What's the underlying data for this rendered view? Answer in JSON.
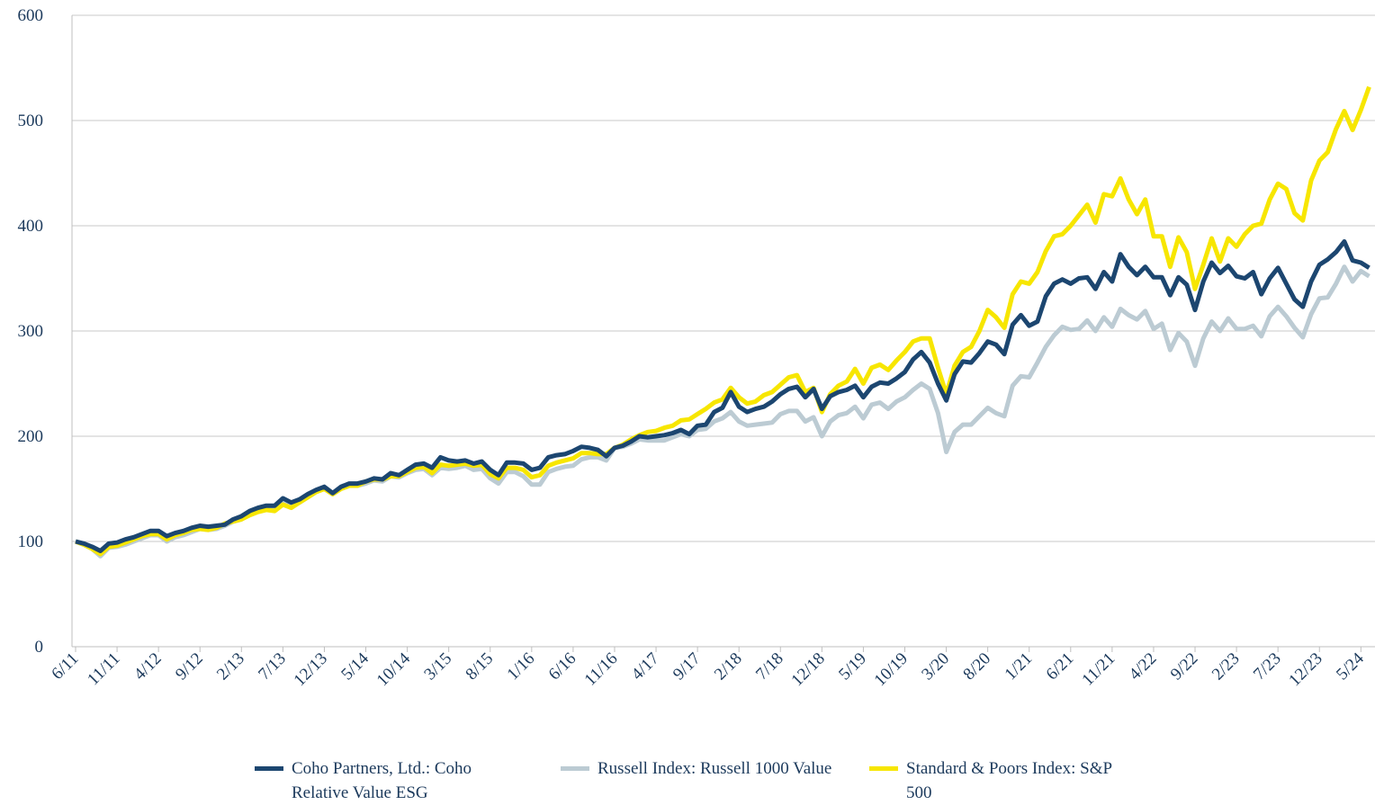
{
  "chart_data": {
    "type": "line",
    "categories": [
      "6/11",
      null,
      null,
      null,
      null,
      "11/11",
      null,
      null,
      null,
      null,
      "4/12",
      null,
      null,
      null,
      null,
      "9/12",
      null,
      null,
      null,
      null,
      "2/13",
      null,
      null,
      null,
      null,
      "7/13",
      null,
      null,
      null,
      null,
      "12/13",
      null,
      null,
      null,
      null,
      "5/14",
      null,
      null,
      null,
      null,
      "10/14",
      null,
      null,
      null,
      null,
      "3/15",
      null,
      null,
      null,
      null,
      "8/15",
      null,
      null,
      null,
      null,
      "1/16",
      null,
      null,
      null,
      null,
      "6/16",
      null,
      null,
      null,
      null,
      "11/16",
      null,
      null,
      null,
      null,
      "4/17",
      null,
      null,
      null,
      null,
      "9/17",
      null,
      null,
      null,
      null,
      "2/18",
      null,
      null,
      null,
      null,
      "7/18",
      null,
      null,
      null,
      null,
      "12/18",
      null,
      null,
      null,
      null,
      "5/19",
      null,
      null,
      null,
      null,
      "10/19",
      null,
      null,
      null,
      null,
      "3/20",
      null,
      null,
      null,
      null,
      "8/20",
      null,
      null,
      null,
      null,
      "1/21",
      null,
      null,
      null,
      null,
      "6/21",
      null,
      null,
      null,
      null,
      "11/21",
      null,
      null,
      null,
      null,
      "4/22",
      null,
      null,
      null,
      null,
      "9/22",
      null,
      null,
      null,
      null,
      "2/23",
      null,
      null,
      null,
      null,
      "7/23",
      null,
      null,
      null,
      null,
      "12/23",
      null,
      null,
      null,
      null,
      "5/24",
      null
    ],
    "series": [
      {
        "name": "Coho Partners, Ltd.: Coho Relative Value ESG",
        "color": "#1c4670",
        "values": [
          100,
          98,
          95,
          91,
          98,
          99,
          102,
          104,
          107,
          110,
          110,
          105,
          108,
          110,
          113,
          115,
          114,
          115,
          116,
          121,
          124,
          129,
          132,
          134,
          134,
          141,
          137,
          140,
          145,
          149,
          152,
          146,
          152,
          155,
          155,
          157,
          160,
          159,
          165,
          163,
          168,
          173,
          174,
          170,
          180,
          177,
          176,
          177,
          174,
          176,
          168,
          163,
          175,
          175,
          174,
          168,
          170,
          180,
          182,
          183,
          186,
          190,
          189,
          187,
          181,
          189,
          191,
          195,
          200,
          199,
          200,
          201,
          203,
          206,
          202,
          210,
          211,
          223,
          227,
          242,
          228,
          223,
          226,
          228,
          233,
          240,
          245,
          247,
          237,
          245,
          226,
          238,
          242,
          244,
          248,
          237,
          247,
          251,
          250,
          255,
          261,
          273,
          280,
          270,
          250,
          234,
          259,
          271,
          270,
          279,
          290,
          287,
          278,
          306,
          315,
          305,
          309,
          333,
          345,
          349,
          345,
          350,
          351,
          340,
          356,
          347,
          373,
          361,
          353,
          361,
          351,
          351,
          334,
          351,
          344,
          320,
          347,
          365,
          355,
          362,
          352,
          350,
          356,
          335,
          350,
          360,
          345,
          330,
          323,
          347,
          363,
          368,
          375,
          385,
          367,
          365,
          360
        ]
      },
      {
        "name": "Russell Index: Russell 1000 Value",
        "color": "#bccbd3",
        "values": [
          100,
          97,
          93,
          86,
          94,
          95,
          97,
          100,
          103,
          106,
          106,
          100,
          104,
          106,
          109,
          112,
          111,
          112,
          115,
          119,
          121,
          126,
          129,
          131,
          131,
          136,
          133,
          137,
          142,
          147,
          150,
          145,
          150,
          153,
          153,
          155,
          158,
          157,
          162,
          161,
          165,
          168,
          169,
          163,
          170,
          169,
          170,
          172,
          168,
          169,
          160,
          155,
          166,
          166,
          162,
          154,
          154,
          166,
          169,
          171,
          172,
          178,
          180,
          180,
          177,
          189,
          190,
          193,
          197,
          196,
          196,
          196,
          199,
          202,
          200,
          206,
          207,
          214,
          217,
          223,
          214,
          210,
          211,
          212,
          213,
          221,
          224,
          224,
          214,
          218,
          200,
          214,
          220,
          222,
          228,
          217,
          230,
          232,
          226,
          233,
          237,
          244,
          250,
          245,
          222,
          185,
          204,
          211,
          211,
          219,
          227,
          222,
          219,
          248,
          257,
          256,
          270,
          285,
          296,
          304,
          301,
          302,
          310,
          300,
          313,
          304,
          321,
          315,
          311,
          319,
          302,
          307,
          282,
          298,
          290,
          267,
          293,
          309,
          300,
          312,
          302,
          302,
          305,
          295,
          314,
          323,
          314,
          303,
          294,
          316,
          331,
          332,
          345,
          361,
          347,
          357,
          352
        ]
      },
      {
        "name": "Standard & Poors Index: S&P 500",
        "color": "#f7e600",
        "values": [
          100,
          97,
          93,
          88,
          95,
          96,
          99,
          102,
          105,
          107,
          107,
          102,
          106,
          108,
          111,
          112,
          111,
          113,
          117,
          119,
          121,
          125,
          128,
          130,
          129,
          135,
          132,
          137,
          142,
          147,
          150,
          145,
          150,
          153,
          153,
          157,
          159,
          159,
          162,
          162,
          166,
          170,
          171,
          165,
          173,
          172,
          173,
          174,
          172,
          173,
          164,
          160,
          170,
          170,
          168,
          161,
          163,
          172,
          175,
          177,
          179,
          184,
          184,
          183,
          183,
          189,
          192,
          197,
          201,
          204,
          205,
          208,
          210,
          215,
          216,
          221,
          226,
          232,
          235,
          246,
          237,
          231,
          233,
          239,
          242,
          249,
          256,
          258,
          242,
          246,
          223,
          240,
          248,
          252,
          264,
          250,
          265,
          268,
          263,
          272,
          280,
          290,
          293,
          293,
          265,
          240,
          267,
          280,
          285,
          300,
          320,
          313,
          303,
          335,
          347,
          345,
          356,
          376,
          390,
          392,
          400,
          410,
          420,
          403,
          430,
          428,
          445,
          425,
          411,
          425,
          390,
          390,
          361,
          389,
          375,
          340,
          363,
          388,
          366,
          388,
          380,
          392,
          400,
          402,
          425,
          440,
          435,
          412,
          405,
          443,
          462,
          470,
          492,
          509,
          491,
          510,
          532
        ]
      }
    ],
    "ylim": [
      0,
      600
    ],
    "yticks": [
      0,
      100,
      200,
      300,
      400,
      500,
      600
    ],
    "grid": true
  }
}
